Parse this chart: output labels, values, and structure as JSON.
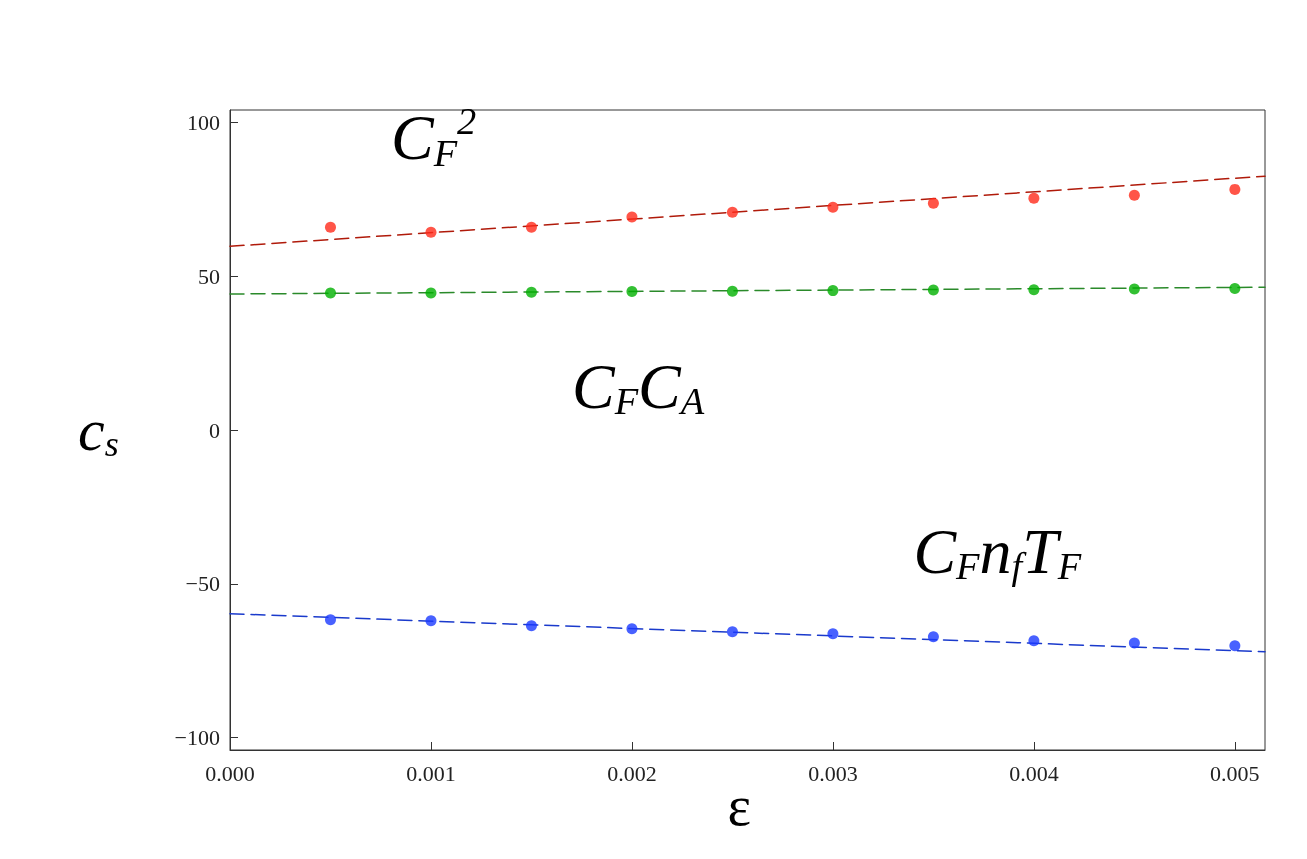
{
  "chart_data": {
    "type": "scatter",
    "xlabel": "ε",
    "ylabel": "c$_{s}$",
    "xlim": [
      0,
      0.00515
    ],
    "ylim": [
      -104,
      104
    ],
    "xticks": [
      {
        "value": 0,
        "label": "0.000"
      },
      {
        "value": 0.001,
        "label": "0.001"
      },
      {
        "value": 0.002,
        "label": "0.002"
      },
      {
        "value": 0.003,
        "label": "0.003"
      },
      {
        "value": 0.004,
        "label": "0.004"
      },
      {
        "value": 0.005,
        "label": "0.005"
      }
    ],
    "yticks": [
      {
        "value": -100,
        "label": "−100"
      },
      {
        "value": -50,
        "label": "−50"
      },
      0,
      50,
      100
    ],
    "grid": false,
    "legend": false,
    "marker": "circle",
    "series": [
      {
        "type": "scatter",
        "name": "C$_{F}$$^{2}$",
        "color": "#ff2a1a",
        "x": [
          0.0005,
          0.001,
          0.0015,
          0.002,
          0.0025,
          0.003,
          0.0035,
          0.004,
          0.0045,
          0.005
        ],
        "values": [
          65.9,
          64.3,
          65.9,
          69.2,
          70.8,
          72.4,
          73.7,
          75.3,
          76.3,
          78.2
        ]
      },
      {
        "type": "line",
        "color": "#b01a0a",
        "line_style": "dashed",
        "marker": "none",
        "x": [
          0,
          0.00515
        ],
        "values": [
          59.7,
          82.5
        ]
      },
      {
        "type": "scatter",
        "name": "C$_{F}$C$_{A}$",
        "color": "#00b000",
        "x": [
          0.0005,
          0.001,
          0.0015,
          0.002,
          0.0025,
          0.003,
          0.0035,
          0.004,
          0.0045,
          0.005
        ],
        "values": [
          44.5,
          44.5,
          44.8,
          45,
          45.1,
          45.3,
          45.5,
          45.6,
          45.8,
          46
        ]
      },
      {
        "type": "line",
        "color": "#2a8a2a",
        "line_style": "dashed",
        "marker": "none",
        "x": [
          0,
          0.00515
        ],
        "values": [
          44.2,
          46.4
        ]
      },
      {
        "type": "scatter",
        "name": "C$_{F}$n$_{f}$T$_{F}$",
        "color": "#1a3aff",
        "x": [
          0.0005,
          0.001,
          0.0015,
          0.002,
          0.0025,
          0.003,
          0.0035,
          0.004,
          0.0045,
          0.005
        ],
        "values": [
          -61.7,
          -62,
          -63.6,
          -64.6,
          -65.6,
          -66.2,
          -67.2,
          -68.5,
          -69.2,
          -70.1
        ]
      },
      {
        "type": "line",
        "color": "#1a3acc",
        "line_style": "dashed",
        "marker": "none",
        "x": [
          0,
          0.00515
        ],
        "values": [
          -59.7,
          -72.1
        ]
      }
    ]
  }
}
